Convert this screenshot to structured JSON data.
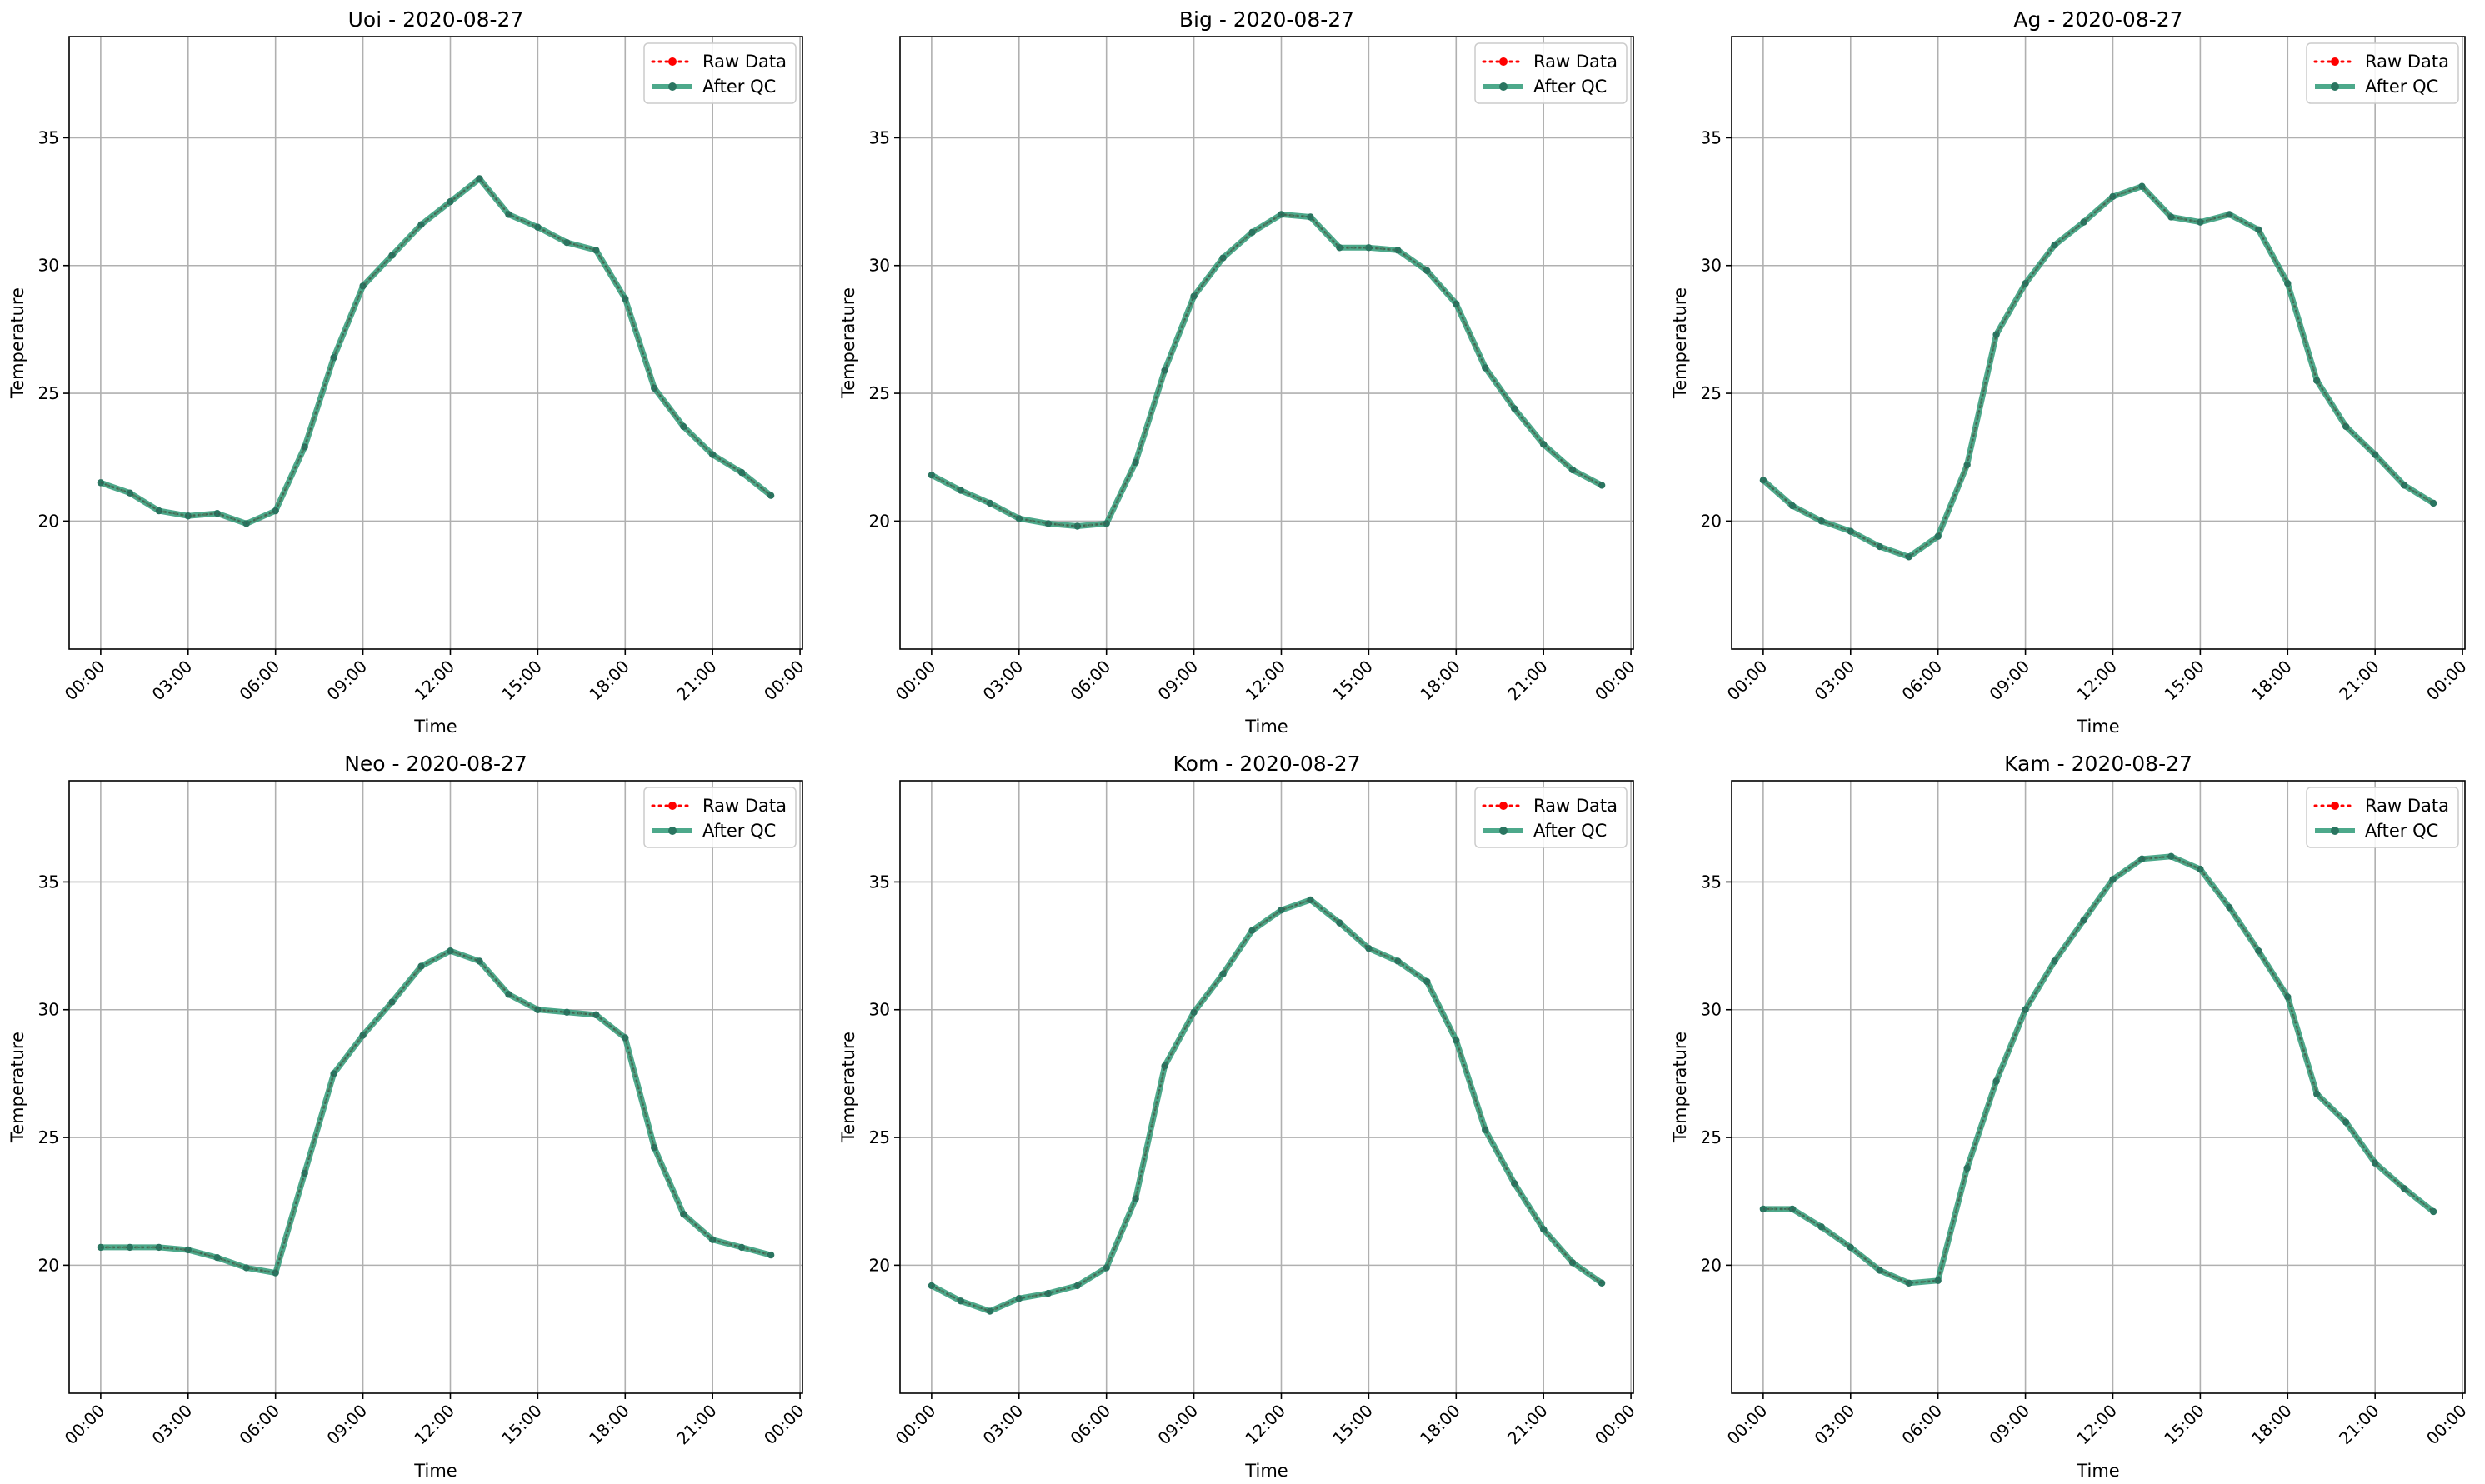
{
  "chart_data": [
    {
      "type": "line",
      "title": "Uoi - 2020-08-27",
      "xlabel": "Time",
      "ylabel": "Temperature",
      "xlim": [
        "2020-08-26T22:55",
        "2020-08-28T00:05"
      ],
      "ylim": [
        14.99,
        38.96
      ],
      "x_ticks": [
        "00:00",
        "03:00",
        "06:00",
        "09:00",
        "12:00",
        "15:00",
        "18:00",
        "21:00",
        "00:00"
      ],
      "y_ticks": [
        20,
        25,
        30,
        35
      ],
      "grid": true,
      "legend": "top-right",
      "legend_entries": [
        "Raw Data",
        "After QC"
      ],
      "x": [
        "00:00",
        "01:00",
        "02:00",
        "03:00",
        "04:00",
        "05:00",
        "06:00",
        "07:00",
        "08:00",
        "09:00",
        "10:00",
        "11:00",
        "12:00",
        "13:00",
        "14:00",
        "15:00",
        "16:00",
        "17:00",
        "18:00",
        "19:00",
        "20:00",
        "21:00",
        "22:00",
        "23:00"
      ],
      "series": [
        {
          "name": "Raw Data",
          "color": "#ff0000",
          "values": [
            21.5,
            21.1,
            20.4,
            20.2,
            20.3,
            19.9,
            20.4,
            22.9,
            26.4,
            29.2,
            30.4,
            31.6,
            32.5,
            33.4,
            32.0,
            31.5,
            30.9,
            30.6,
            28.7,
            25.2,
            23.7,
            22.6,
            21.9,
            21.0
          ]
        },
        {
          "name": "After QC",
          "color": "#2e9a77",
          "values": [
            21.5,
            21.1,
            20.4,
            20.2,
            20.3,
            19.9,
            20.4,
            22.9,
            26.4,
            29.2,
            30.4,
            31.6,
            32.5,
            33.4,
            32.0,
            31.5,
            30.9,
            30.6,
            28.7,
            25.2,
            23.7,
            22.6,
            21.9,
            21.0
          ]
        }
      ]
    },
    {
      "type": "line",
      "title": "Big - 2020-08-27",
      "xlabel": "Time",
      "ylabel": "Temperature",
      "xlim": [
        "2020-08-26T22:55",
        "2020-08-28T00:05"
      ],
      "ylim": [
        14.99,
        38.96
      ],
      "x_ticks": [
        "00:00",
        "03:00",
        "06:00",
        "09:00",
        "12:00",
        "15:00",
        "18:00",
        "21:00",
        "00:00"
      ],
      "y_ticks": [
        20,
        25,
        30,
        35
      ],
      "grid": true,
      "legend": "top-right",
      "legend_entries": [
        "Raw Data",
        "After QC"
      ],
      "x": [
        "00:00",
        "01:00",
        "02:00",
        "03:00",
        "04:00",
        "05:00",
        "06:00",
        "07:00",
        "08:00",
        "09:00",
        "10:00",
        "11:00",
        "12:00",
        "13:00",
        "14:00",
        "15:00",
        "16:00",
        "17:00",
        "18:00",
        "19:00",
        "20:00",
        "21:00",
        "22:00",
        "23:00"
      ],
      "series": [
        {
          "name": "Raw Data",
          "color": "#ff0000",
          "values": [
            21.8,
            21.2,
            20.7,
            20.1,
            19.9,
            19.8,
            19.9,
            22.3,
            25.9,
            28.8,
            30.3,
            31.3,
            32.0,
            31.9,
            30.7,
            30.7,
            30.6,
            29.8,
            28.5,
            26.0,
            24.4,
            23.0,
            22.0,
            21.4
          ]
        },
        {
          "name": "After QC",
          "color": "#2e9a77",
          "values": [
            21.8,
            21.2,
            20.7,
            20.1,
            19.9,
            19.8,
            19.9,
            22.3,
            25.9,
            28.8,
            30.3,
            31.3,
            32.0,
            31.9,
            30.7,
            30.7,
            30.6,
            29.8,
            28.5,
            26.0,
            24.4,
            23.0,
            22.0,
            21.4
          ]
        }
      ]
    },
    {
      "type": "line",
      "title": "Ag - 2020-08-27",
      "xlabel": "Time",
      "ylabel": "Temperature",
      "xlim": [
        "2020-08-26T22:55",
        "2020-08-28T00:05"
      ],
      "ylim": [
        14.99,
        38.96
      ],
      "x_ticks": [
        "00:00",
        "03:00",
        "06:00",
        "09:00",
        "12:00",
        "15:00",
        "18:00",
        "21:00",
        "00:00"
      ],
      "y_ticks": [
        20,
        25,
        30,
        35
      ],
      "grid": true,
      "legend": "top-right",
      "legend_entries": [
        "Raw Data",
        "After QC"
      ],
      "x": [
        "00:00",
        "01:00",
        "02:00",
        "03:00",
        "04:00",
        "05:00",
        "06:00",
        "07:00",
        "08:00",
        "09:00",
        "10:00",
        "11:00",
        "12:00",
        "13:00",
        "14:00",
        "15:00",
        "16:00",
        "17:00",
        "18:00",
        "19:00",
        "20:00",
        "21:00",
        "22:00",
        "23:00"
      ],
      "series": [
        {
          "name": "Raw Data",
          "color": "#ff0000",
          "values": [
            21.6,
            20.6,
            20.0,
            19.6,
            19.0,
            18.6,
            19.4,
            22.2,
            27.3,
            29.3,
            30.8,
            31.7,
            32.7,
            33.1,
            31.9,
            31.7,
            32.0,
            31.4,
            29.3,
            25.5,
            23.7,
            22.6,
            21.4,
            20.7
          ]
        },
        {
          "name": "After QC",
          "color": "#2e9a77",
          "values": [
            21.6,
            20.6,
            20.0,
            19.6,
            19.0,
            18.6,
            19.4,
            22.2,
            27.3,
            29.3,
            30.8,
            31.7,
            32.7,
            33.1,
            31.9,
            31.7,
            32.0,
            31.4,
            29.3,
            25.5,
            23.7,
            22.6,
            21.4,
            20.7
          ]
        }
      ]
    },
    {
      "type": "line",
      "title": "Neo - 2020-08-27",
      "xlabel": "Time",
      "ylabel": "Temperature",
      "xlim": [
        "2020-08-26T22:55",
        "2020-08-28T00:05"
      ],
      "ylim": [
        14.99,
        38.96
      ],
      "x_ticks": [
        "00:00",
        "03:00",
        "06:00",
        "09:00",
        "12:00",
        "15:00",
        "18:00",
        "21:00",
        "00:00"
      ],
      "y_ticks": [
        20,
        25,
        30,
        35
      ],
      "grid": true,
      "legend": "top-right",
      "legend_entries": [
        "Raw Data",
        "After QC"
      ],
      "x": [
        "00:00",
        "01:00",
        "02:00",
        "03:00",
        "04:00",
        "05:00",
        "06:00",
        "07:00",
        "08:00",
        "09:00",
        "10:00",
        "11:00",
        "12:00",
        "13:00",
        "14:00",
        "15:00",
        "16:00",
        "17:00",
        "18:00",
        "19:00",
        "20:00",
        "21:00",
        "22:00",
        "23:00"
      ],
      "series": [
        {
          "name": "Raw Data",
          "color": "#ff0000",
          "values": [
            20.7,
            20.7,
            20.7,
            20.6,
            20.3,
            19.9,
            19.7,
            23.6,
            27.5,
            29.0,
            30.3,
            31.7,
            32.3,
            31.9,
            30.6,
            30.0,
            29.9,
            29.8,
            28.9,
            24.6,
            22.0,
            21.0,
            20.7,
            20.4
          ]
        },
        {
          "name": "After QC",
          "color": "#2e9a77",
          "values": [
            20.7,
            20.7,
            20.7,
            20.6,
            20.3,
            19.9,
            19.7,
            23.6,
            27.5,
            29.0,
            30.3,
            31.7,
            32.3,
            31.9,
            30.6,
            30.0,
            29.9,
            29.8,
            28.9,
            24.6,
            22.0,
            21.0,
            20.7,
            20.4
          ]
        }
      ]
    },
    {
      "type": "line",
      "title": "Kom - 2020-08-27",
      "xlabel": "Time",
      "ylabel": "Temperature",
      "xlim": [
        "2020-08-26T22:55",
        "2020-08-28T00:05"
      ],
      "ylim": [
        14.99,
        38.96
      ],
      "x_ticks": [
        "00:00",
        "03:00",
        "06:00",
        "09:00",
        "12:00",
        "15:00",
        "18:00",
        "21:00",
        "00:00"
      ],
      "y_ticks": [
        20,
        25,
        30,
        35
      ],
      "grid": true,
      "legend": "top-right",
      "legend_entries": [
        "Raw Data",
        "After QC"
      ],
      "x": [
        "00:00",
        "01:00",
        "02:00",
        "03:00",
        "04:00",
        "05:00",
        "06:00",
        "07:00",
        "08:00",
        "09:00",
        "10:00",
        "11:00",
        "12:00",
        "13:00",
        "14:00",
        "15:00",
        "16:00",
        "17:00",
        "18:00",
        "19:00",
        "20:00",
        "21:00",
        "22:00",
        "23:00"
      ],
      "series": [
        {
          "name": "Raw Data",
          "color": "#ff0000",
          "values": [
            19.2,
            18.6,
            18.2,
            18.7,
            18.9,
            19.2,
            19.9,
            22.6,
            27.8,
            29.9,
            31.4,
            33.1,
            33.9,
            34.3,
            33.4,
            32.4,
            31.9,
            31.1,
            28.8,
            25.3,
            23.2,
            21.4,
            20.1,
            19.3
          ]
        },
        {
          "name": "After QC",
          "color": "#2e9a77",
          "values": [
            19.2,
            18.6,
            18.2,
            18.7,
            18.9,
            19.2,
            19.9,
            22.6,
            27.8,
            29.9,
            31.4,
            33.1,
            33.9,
            34.3,
            33.4,
            32.4,
            31.9,
            31.1,
            28.8,
            25.3,
            23.2,
            21.4,
            20.1,
            19.3
          ]
        }
      ]
    },
    {
      "type": "line",
      "title": "Kam - 2020-08-27",
      "xlabel": "Time",
      "ylabel": "Temperature",
      "xlim": [
        "2020-08-26T22:55",
        "2020-08-28T00:05"
      ],
      "ylim": [
        14.99,
        38.96
      ],
      "x_ticks": [
        "00:00",
        "03:00",
        "06:00",
        "09:00",
        "12:00",
        "15:00",
        "18:00",
        "21:00",
        "00:00"
      ],
      "y_ticks": [
        20,
        25,
        30,
        35
      ],
      "grid": true,
      "legend": "top-right",
      "legend_entries": [
        "Raw Data",
        "After QC"
      ],
      "x": [
        "00:00",
        "01:00",
        "02:00",
        "03:00",
        "04:00",
        "05:00",
        "06:00",
        "07:00",
        "08:00",
        "09:00",
        "10:00",
        "11:00",
        "12:00",
        "13:00",
        "14:00",
        "15:00",
        "16:00",
        "17:00",
        "18:00",
        "19:00",
        "20:00",
        "21:00",
        "22:00",
        "23:00"
      ],
      "series": [
        {
          "name": "Raw Data",
          "color": "#ff0000",
          "values": [
            22.2,
            22.2,
            21.5,
            20.7,
            19.8,
            19.3,
            19.4,
            23.8,
            27.2,
            30.0,
            31.9,
            33.5,
            35.1,
            35.9,
            36.0,
            35.5,
            34.0,
            32.3,
            30.5,
            26.7,
            25.6,
            24.0,
            23.0,
            22.1
          ]
        },
        {
          "name": "After QC",
          "color": "#2e9a77",
          "values": [
            22.2,
            22.2,
            21.5,
            20.7,
            19.8,
            19.3,
            19.4,
            23.8,
            27.2,
            30.0,
            31.9,
            33.5,
            35.1,
            35.9,
            36.0,
            35.5,
            34.0,
            32.3,
            30.5,
            26.7,
            25.6,
            24.0,
            23.0,
            22.1
          ]
        }
      ]
    }
  ]
}
